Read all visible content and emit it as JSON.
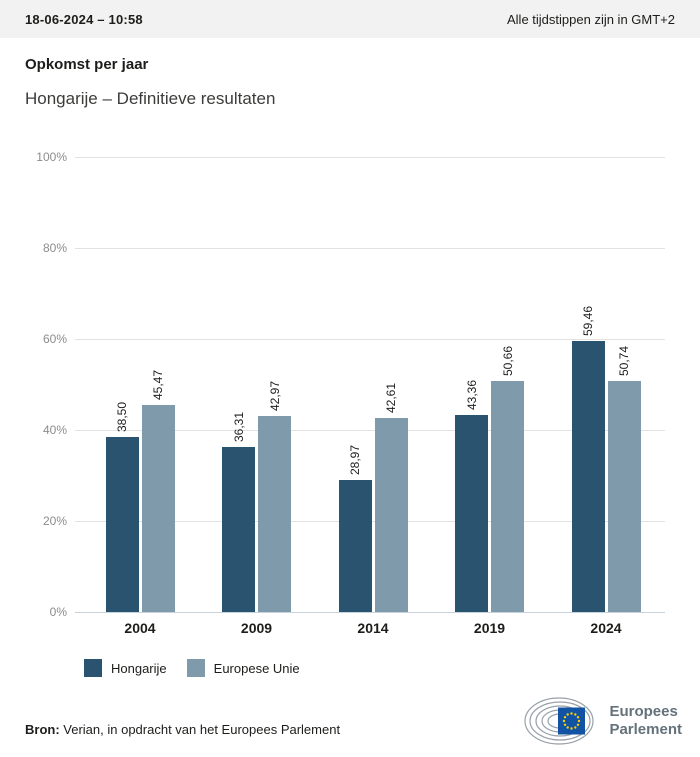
{
  "header": {
    "date": "18-06-2024 – 10:58",
    "timezone_note": "Alle tijdstippen zijn in GMT+2"
  },
  "title": "Opkomst per jaar",
  "subtitle": "Hongarije – Definitieve resultaten",
  "chart_data": {
    "type": "bar",
    "title": "Opkomst per jaar",
    "subtitle": "Hongarije – Definitieve resultaten",
    "categories": [
      "2004",
      "2009",
      "2014",
      "2019",
      "2024"
    ],
    "series": [
      {
        "name": "Hongarije",
        "color": "#2a536f",
        "values": [
          38.5,
          36.31,
          28.97,
          43.36,
          59.46
        ],
        "value_labels": [
          "38,50",
          "36,31",
          "28,97",
          "43,36",
          "59,46"
        ]
      },
      {
        "name": "Europese Unie",
        "color": "#7f9aab",
        "values": [
          45.47,
          42.97,
          42.61,
          50.66,
          50.74
        ],
        "value_labels": [
          "45,47",
          "42,97",
          "42,61",
          "50,66",
          "50,74"
        ]
      }
    ],
    "ylim": [
      0,
      100
    ],
    "yticks": [
      {
        "value": 0,
        "label": "0%"
      },
      {
        "value": 20,
        "label": "20%"
      },
      {
        "value": 40,
        "label": "40%"
      },
      {
        "value": 60,
        "label": "60%"
      },
      {
        "value": 80,
        "label": "80%"
      },
      {
        "value": 100,
        "label": "100%"
      }
    ],
    "grid": true,
    "legend_position": "bottom"
  },
  "footer": {
    "source_label": "Bron:",
    "source_text": " Verian, in opdracht van het Europees Parlement"
  },
  "logo": {
    "line1": "Europees",
    "line2": "Parlement",
    "flag_color": "#1253a3",
    "star_color": "#f9d008",
    "arc_color": "#97a1a8",
    "text_color": "#64727b"
  }
}
